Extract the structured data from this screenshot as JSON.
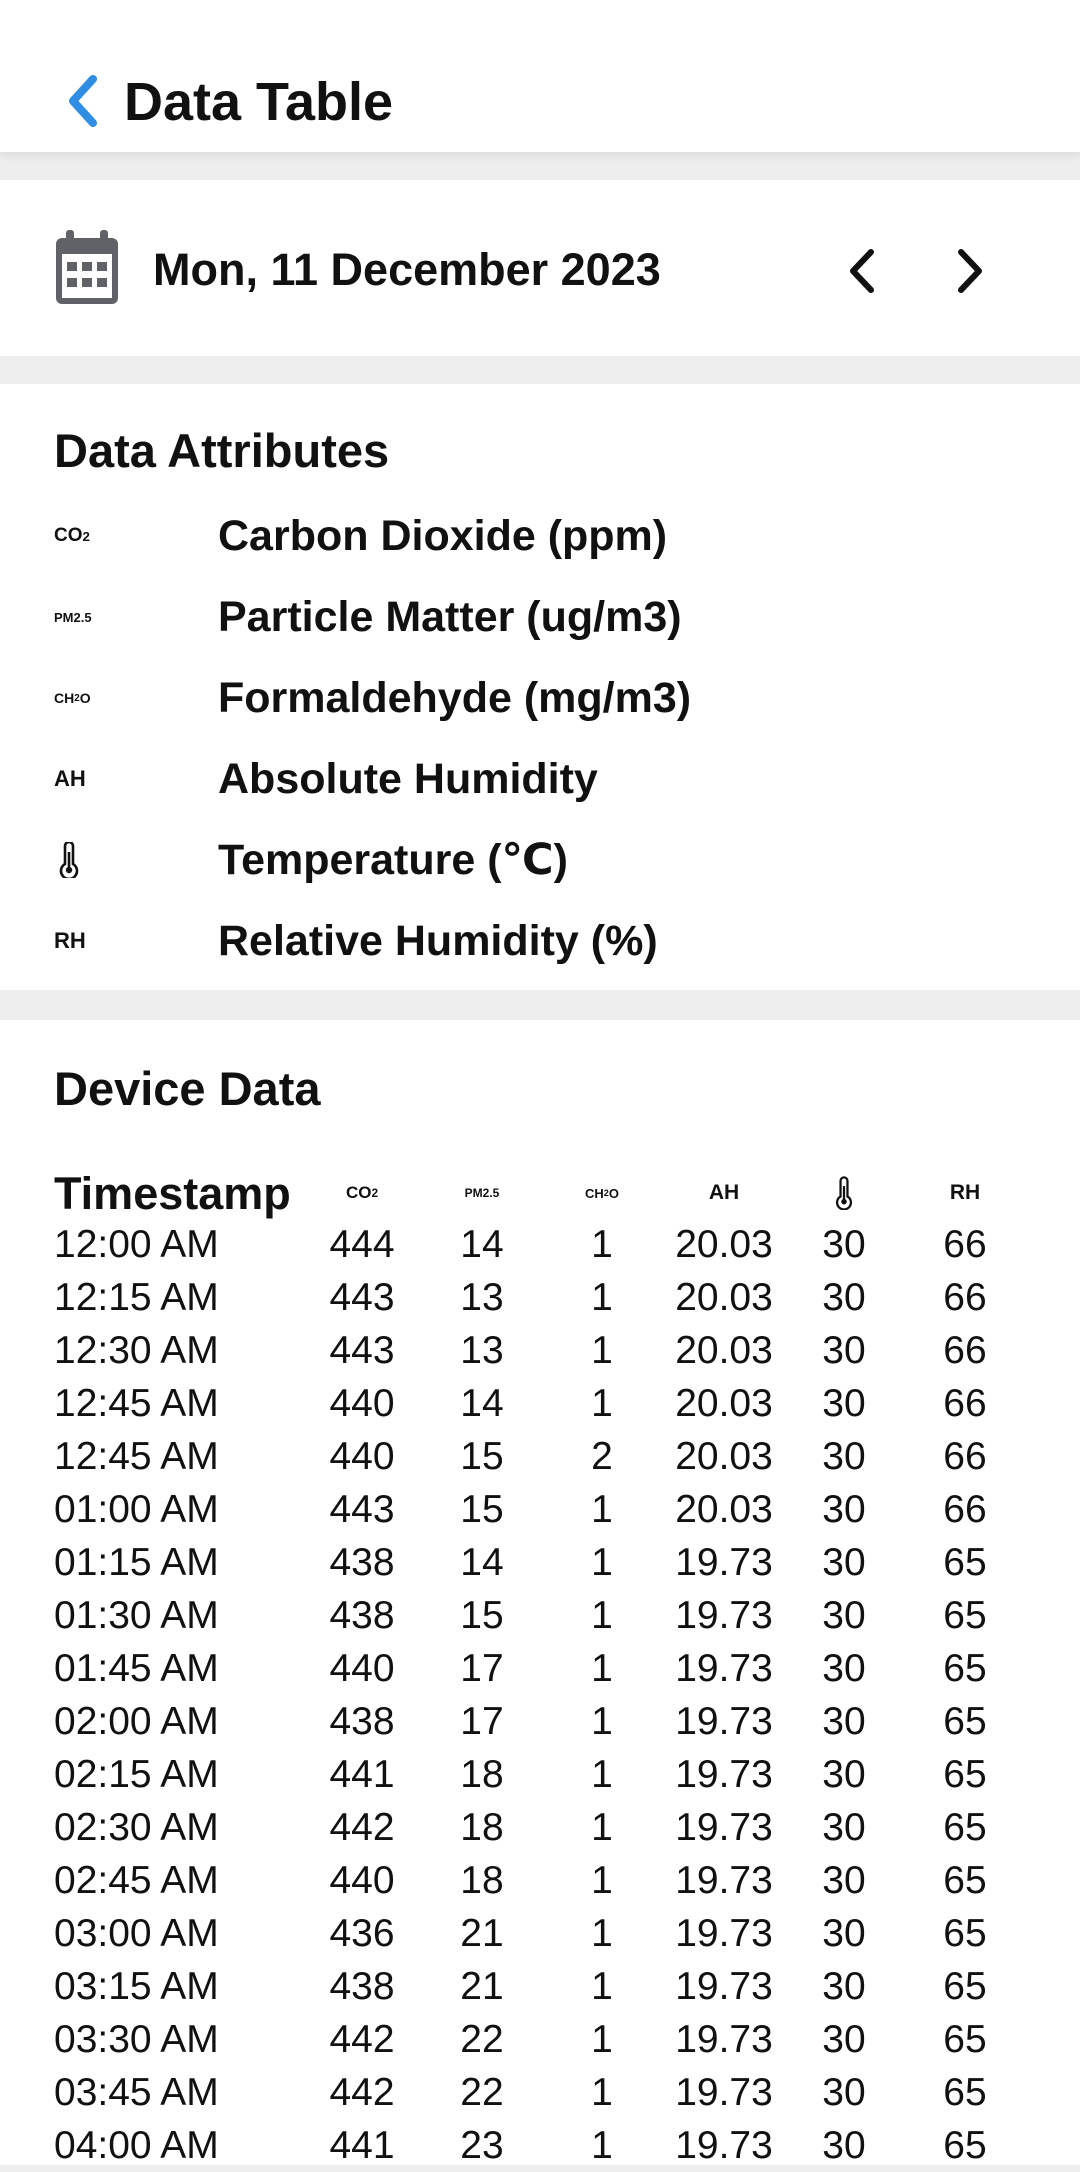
{
  "appbar": {
    "title": "Data Table"
  },
  "date_selector": {
    "date": "Mon, 11 December 2023"
  },
  "attributes": {
    "title": "Data Attributes",
    "items": [
      {
        "symbol": "CO",
        "symbol_sub": "2",
        "label": "Carbon Dioxide (ppm)"
      },
      {
        "symbol": "PM2.5",
        "symbol_sub": "",
        "label": "Particle Matter (ug/m3)"
      },
      {
        "symbol": "CH",
        "symbol_sub": "2",
        "symbol_tail": "O",
        "label": "Formaldehyde (mg/m3)"
      },
      {
        "symbol": "AH",
        "symbol_sub": "",
        "label": "Absolute Humidity"
      },
      {
        "symbol": "thermometer-icon",
        "symbol_sub": "",
        "label": "Temperature (℃)"
      },
      {
        "symbol": "RH",
        "symbol_sub": "",
        "label": "Relative Humidity (%)"
      }
    ]
  },
  "device_data": {
    "title": "Device Data",
    "header": {
      "timestamp": "Timestamp",
      "co2": "CO",
      "co2_sub": "2",
      "pm25": "PM2.5",
      "ch2o": "CH",
      "ch2o_sub": "2",
      "ch2o_tail": "O",
      "ah": "AH",
      "rh": "RH"
    },
    "rows": [
      [
        "12:00 AM",
        "444",
        "14",
        "1",
        "20.03",
        "30",
        "66"
      ],
      [
        "12:15 AM",
        "443",
        "13",
        "1",
        "20.03",
        "30",
        "66"
      ],
      [
        "12:30 AM",
        "443",
        "13",
        "1",
        "20.03",
        "30",
        "66"
      ],
      [
        "12:45 AM",
        "440",
        "14",
        "1",
        "20.03",
        "30",
        "66"
      ],
      [
        "12:45 AM",
        "440",
        "15",
        "2",
        "20.03",
        "30",
        "66"
      ],
      [
        "01:00 AM",
        "443",
        "15",
        "1",
        "20.03",
        "30",
        "66"
      ],
      [
        "01:15 AM",
        "438",
        "14",
        "1",
        "19.73",
        "30",
        "65"
      ],
      [
        "01:30 AM",
        "438",
        "15",
        "1",
        "19.73",
        "30",
        "65"
      ],
      [
        "01:45 AM",
        "440",
        "17",
        "1",
        "19.73",
        "30",
        "65"
      ],
      [
        "02:00 AM",
        "438",
        "17",
        "1",
        "19.73",
        "30",
        "65"
      ],
      [
        "02:15 AM",
        "441",
        "18",
        "1",
        "19.73",
        "30",
        "65"
      ],
      [
        "02:30 AM",
        "442",
        "18",
        "1",
        "19.73",
        "30",
        "65"
      ],
      [
        "02:45 AM",
        "440",
        "18",
        "1",
        "19.73",
        "30",
        "65"
      ],
      [
        "03:00 AM",
        "436",
        "21",
        "1",
        "19.73",
        "30",
        "65"
      ],
      [
        "03:15 AM",
        "438",
        "21",
        "1",
        "19.73",
        "30",
        "65"
      ],
      [
        "03:30 AM",
        "442",
        "22",
        "1",
        "19.73",
        "30",
        "65"
      ],
      [
        "03:45 AM",
        "442",
        "22",
        "1",
        "19.73",
        "30",
        "65"
      ],
      [
        "04:00 AM",
        "441",
        "23",
        "1",
        "19.73",
        "30",
        "65"
      ]
    ]
  },
  "colors": {
    "accent": "#2f8de4",
    "icon_gray": "#5f6368",
    "divider": "#eeeeee"
  }
}
